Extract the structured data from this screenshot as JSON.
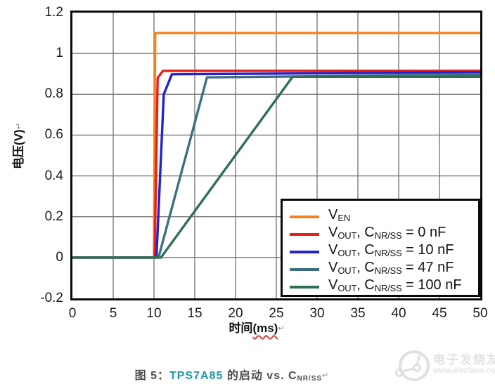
{
  "chart_data": {
    "type": "line",
    "title": "",
    "xlabel": "时间(ms)",
    "ylabel": "电压(V)",
    "xlim": [
      0,
      50
    ],
    "ylim": [
      -0.2,
      1.2
    ],
    "grid": true,
    "legend_position": "lower right",
    "x_ticks": [
      0,
      5,
      10,
      15,
      20,
      25,
      30,
      35,
      40,
      45,
      50
    ],
    "x_tick_labels": [
      "0",
      "5",
      "10",
      "15",
      "20",
      "25",
      "30",
      "35",
      "40",
      "45",
      "50"
    ],
    "y_ticks": [
      1.2,
      1,
      0.8,
      0.6,
      0.4,
      0.2,
      0,
      -0.2
    ],
    "y_tick_labels": [
      "1.2",
      "1",
      "0.8",
      "0.6",
      "0.4",
      "0.2",
      "0",
      "-0.2"
    ],
    "series": [
      {
        "name": "VEN",
        "color": "#F5821F",
        "points": [
          [
            0,
            0
          ],
          [
            10,
            0
          ],
          [
            10.15,
            1.1
          ],
          [
            50,
            1.1
          ]
        ]
      },
      {
        "name": "VOUT, CNR/SS = 0 nF",
        "color": "#E32119",
        "points": [
          [
            0,
            0
          ],
          [
            10.08,
            0
          ],
          [
            10.45,
            0.88
          ],
          [
            11.1,
            0.915
          ],
          [
            50,
            0.915
          ]
        ]
      },
      {
        "name": "VOUT, CNR/SS = 10 nF",
        "color": "#2222CF",
        "points": [
          [
            0,
            0
          ],
          [
            10.3,
            0
          ],
          [
            11.2,
            0.8
          ],
          [
            12.2,
            0.898
          ],
          [
            50,
            0.908
          ]
        ]
      },
      {
        "name": "VOUT, CNR/SS = 47 nF",
        "color": "#3C7080",
        "points": [
          [
            0,
            0
          ],
          [
            10.55,
            0
          ],
          [
            16.5,
            0.883
          ],
          [
            50,
            0.896
          ]
        ]
      },
      {
        "name": "VOUT, CNR/SS = 100 nF",
        "color": "#2F7050",
        "points": [
          [
            0,
            0
          ],
          [
            10.85,
            0
          ],
          [
            27,
            0.886
          ],
          [
            50,
            0.886
          ]
        ]
      }
    ]
  },
  "axes": {
    "ylabel": "电压(V)",
    "xlabel_text": "时间",
    "xlabel_unit": "(ms)",
    "return_mark": "↵"
  },
  "legend": {
    "items": [
      {
        "v": "V",
        "vsub": "EN",
        "rest": "",
        "csub": "",
        "val": ""
      },
      {
        "v": "V",
        "vsub": "OUT",
        "rest": ", C",
        "csub": "NR/SS",
        "val": " = 0 nF"
      },
      {
        "v": "V",
        "vsub": "OUT",
        "rest": ", C",
        "csub": "NR/SS",
        "val": " = 10 nF"
      },
      {
        "v": "V",
        "vsub": "OUT",
        "rest": ", C",
        "csub": "NR/SS",
        "val": " = 47 nF"
      },
      {
        "v": "V",
        "vsub": "OUT",
        "rest": ", C",
        "csub": "NR/SS",
        "val": " = 100 nF"
      }
    ]
  },
  "caption": {
    "fig_label": "图 5：",
    "link_text": "TPS7A85",
    "rest": " 的启动 vs. C",
    "sub": "NR/SS",
    "return_mark": "↵",
    "link_color": "#2196A5"
  },
  "watermark": {
    "brand": "电子发烧友",
    "site": "www.elecfans.com"
  },
  "colors": {
    "grid": "#7a7a7a",
    "frame": "#0a0a0a"
  }
}
